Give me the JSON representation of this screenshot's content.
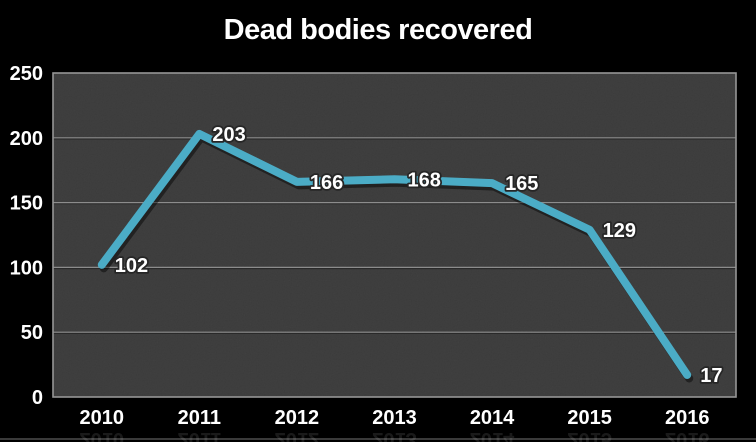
{
  "chart_data": {
    "type": "line",
    "title": "Dead bodies recovered",
    "categories": [
      "2010",
      "2011",
      "2012",
      "2013",
      "2014",
      "2015",
      "2016"
    ],
    "series": [
      {
        "name": "Dead bodies recovered",
        "values": [
          102,
          203,
          166,
          168,
          165,
          129,
          17
        ]
      }
    ],
    "show_data_labels": true,
    "yticks": [
      0,
      50,
      100,
      150,
      200,
      250
    ],
    "ylim": [
      0,
      250
    ],
    "xlabel": "",
    "ylabel": "",
    "grid": true,
    "legend": "none",
    "colors": {
      "line": "#4BACC6",
      "plot_bg": "#3B3B3B",
      "gridline": "#8C8C8C",
      "border": "#969696",
      "text": "#FFFFFF",
      "background": "#000000",
      "label_outline": "#262626"
    }
  }
}
